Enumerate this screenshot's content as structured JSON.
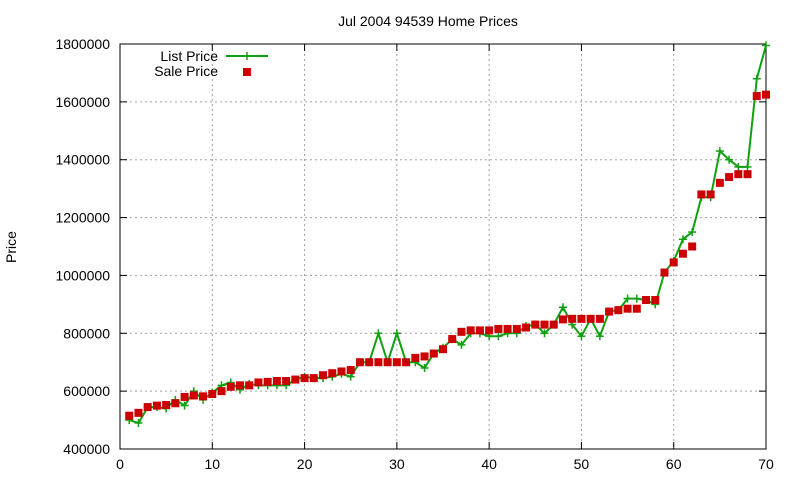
{
  "chart_data": {
    "type": "line",
    "title": "Jul 2004 94539 Home Prices",
    "xlabel": "",
    "ylabel": "Price",
    "xlim": [
      0,
      70
    ],
    "ylim": [
      400000,
      1800000
    ],
    "x_ticks": [
      0,
      10,
      20,
      30,
      40,
      50,
      60,
      70
    ],
    "y_ticks": [
      400000,
      600000,
      800000,
      1000000,
      1200000,
      1400000,
      1600000,
      1800000
    ],
    "x_tick_labels": [
      "0",
      "10",
      "20",
      "30",
      "40",
      "50",
      "60",
      "70"
    ],
    "y_tick_labels": [
      "400000",
      "600000",
      "800000",
      "1000000",
      "1200000",
      "1400000",
      "1600000",
      "1800000"
    ],
    "grid": true,
    "legend_position": "top-left",
    "colors": {
      "list_price": "#11a011",
      "sale_price": "#cc0000",
      "grid": "#a0a0a0"
    },
    "x": [
      1,
      2,
      3,
      4,
      5,
      6,
      7,
      8,
      9,
      10,
      11,
      12,
      13,
      14,
      15,
      16,
      17,
      18,
      19,
      20,
      21,
      22,
      23,
      24,
      25,
      26,
      27,
      28,
      29,
      30,
      31,
      32,
      33,
      34,
      35,
      36,
      37,
      38,
      39,
      40,
      41,
      42,
      43,
      44,
      45,
      46,
      47,
      48,
      49,
      50,
      51,
      52,
      53,
      54,
      55,
      56,
      57,
      58,
      59,
      60,
      61,
      62,
      63,
      64,
      65,
      66,
      67,
      68,
      69,
      70
    ],
    "series": [
      {
        "name": "List Price",
        "style": "line-with-plus-markers",
        "values": [
          500000,
          490000,
          545000,
          545000,
          540000,
          570000,
          550000,
          600000,
          570000,
          595000,
          620000,
          630000,
          605000,
          625000,
          620000,
          620000,
          620000,
          620000,
          640000,
          650000,
          645000,
          645000,
          650000,
          660000,
          650000,
          700000,
          700000,
          800000,
          700000,
          800000,
          700000,
          700000,
          680000,
          730000,
          750000,
          780000,
          760000,
          800000,
          800000,
          790000,
          790000,
          800000,
          800000,
          825000,
          830000,
          800000,
          830000,
          890000,
          830000,
          790000,
          850000,
          790000,
          875000,
          880000,
          920000,
          920000,
          915000,
          900000,
          1010000,
          1050000,
          1125000,
          1150000,
          1270000,
          1270000,
          1430000,
          1400000,
          1375000,
          1375000,
          1680000,
          1795000
        ]
      },
      {
        "name": "Sale Price",
        "style": "square-markers",
        "values": [
          515000,
          525000,
          545000,
          550000,
          552000,
          558000,
          580000,
          585000,
          582000,
          590000,
          600000,
          615000,
          620000,
          620000,
          630000,
          632000,
          635000,
          635000,
          640000,
          645000,
          645000,
          655000,
          662000,
          668000,
          673000,
          700000,
          700000,
          700000,
          700000,
          700000,
          700000,
          715000,
          720000,
          730000,
          745000,
          780000,
          805000,
          810000,
          810000,
          810000,
          815000,
          815000,
          815000,
          820000,
          830000,
          830000,
          830000,
          848000,
          850000,
          850000,
          850000,
          850000,
          875000,
          880000,
          885000,
          885000,
          915000,
          915000,
          1010000,
          1045000,
          1075000,
          1100000,
          1280000,
          1280000,
          1320000,
          1340000,
          1350000,
          1350000,
          1620000,
          1625000
        ]
      }
    ]
  }
}
